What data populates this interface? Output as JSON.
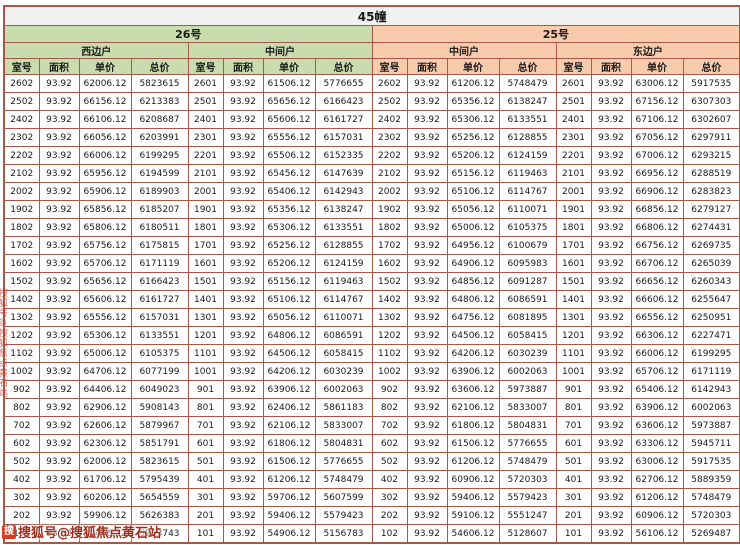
{
  "title": "45幢",
  "groups": [
    {
      "label": "26号",
      "units": [
        "西边户",
        "中间户"
      ]
    },
    {
      "label": "25号",
      "units": [
        "中间户",
        "东边户"
      ]
    }
  ],
  "column_headers": [
    "室号",
    "面积",
    "单价",
    "总价"
  ],
  "rows": [
    [
      "2602",
      "93.92",
      "62006.12",
      "5823615",
      "2601",
      "93.92",
      "61506.12",
      "5776655",
      "2602",
      "93.92",
      "61206.12",
      "5748479",
      "2601",
      "93.92",
      "63006.12",
      "5917535"
    ],
    [
      "2502",
      "93.92",
      "66156.12",
      "6213383",
      "2501",
      "93.92",
      "65656.12",
      "6166423",
      "2502",
      "93.92",
      "65356.12",
      "6138247",
      "2501",
      "93.92",
      "67156.12",
      "6307303"
    ],
    [
      "2402",
      "93.92",
      "66106.12",
      "6208687",
      "2401",
      "93.92",
      "65606.12",
      "6161727",
      "2402",
      "93.92",
      "65306.12",
      "6133551",
      "2401",
      "93.92",
      "67106.12",
      "6302607"
    ],
    [
      "2302",
      "93.92",
      "66056.12",
      "6203991",
      "2301",
      "93.92",
      "65556.12",
      "6157031",
      "2302",
      "93.92",
      "65256.12",
      "6128855",
      "2301",
      "93.92",
      "67056.12",
      "6297911"
    ],
    [
      "2202",
      "93.92",
      "66006.12",
      "6199295",
      "2201",
      "93.92",
      "65506.12",
      "6152335",
      "2202",
      "93.92",
      "65206.12",
      "6124159",
      "2201",
      "93.92",
      "67006.12",
      "6293215"
    ],
    [
      "2102",
      "93.92",
      "65956.12",
      "6194599",
      "2101",
      "93.92",
      "65456.12",
      "6147639",
      "2102",
      "93.92",
      "65156.12",
      "6119463",
      "2101",
      "93.92",
      "66956.12",
      "6288519"
    ],
    [
      "2002",
      "93.92",
      "65906.12",
      "6189903",
      "2001",
      "93.92",
      "65406.12",
      "6142943",
      "2002",
      "93.92",
      "65106.12",
      "6114767",
      "2001",
      "93.92",
      "66906.12",
      "6283823"
    ],
    [
      "1902",
      "93.92",
      "65856.12",
      "6185207",
      "1901",
      "93.92",
      "65356.12",
      "6138247",
      "1902",
      "93.92",
      "65056.12",
      "6110071",
      "1901",
      "93.92",
      "66856.12",
      "6279127"
    ],
    [
      "1802",
      "93.92",
      "65806.12",
      "6180511",
      "1801",
      "93.92",
      "65306.12",
      "6133551",
      "1802",
      "93.92",
      "65006.12",
      "6105375",
      "1801",
      "93.92",
      "66806.12",
      "6274431"
    ],
    [
      "1702",
      "93.92",
      "65756.12",
      "6175815",
      "1701",
      "93.92",
      "65256.12",
      "6128855",
      "1702",
      "93.92",
      "64956.12",
      "6100679",
      "1701",
      "93.92",
      "66756.12",
      "6269735"
    ],
    [
      "1602",
      "93.92",
      "65706.12",
      "6171119",
      "1601",
      "93.92",
      "65206.12",
      "6124159",
      "1602",
      "93.92",
      "64906.12",
      "6095983",
      "1601",
      "93.92",
      "66706.12",
      "6265039"
    ],
    [
      "1502",
      "93.92",
      "65656.12",
      "6166423",
      "1501",
      "93.92",
      "65156.12",
      "6119463",
      "1502",
      "93.92",
      "64856.12",
      "6091287",
      "1501",
      "93.92",
      "66656.12",
      "6260343"
    ],
    [
      "1402",
      "93.92",
      "65606.12",
      "6161727",
      "1401",
      "93.92",
      "65106.12",
      "6114767",
      "1402",
      "93.92",
      "64806.12",
      "6086591",
      "1401",
      "93.92",
      "66606.12",
      "6255647"
    ],
    [
      "1302",
      "93.92",
      "65556.12",
      "6157031",
      "1301",
      "93.92",
      "65056.12",
      "6110071",
      "1302",
      "93.92",
      "64756.12",
      "6081895",
      "1301",
      "93.92",
      "66556.12",
      "6250951"
    ],
    [
      "1202",
      "93.92",
      "65306.12",
      "6133551",
      "1201",
      "93.92",
      "64806.12",
      "6086591",
      "1202",
      "93.92",
      "64506.12",
      "6058415",
      "1201",
      "93.92",
      "66306.12",
      "6227471"
    ],
    [
      "1102",
      "93.92",
      "65006.12",
      "6105375",
      "1101",
      "93.92",
      "64506.12",
      "6058415",
      "1102",
      "93.92",
      "64206.12",
      "6030239",
      "1101",
      "93.92",
      "66006.12",
      "6199295"
    ],
    [
      "1002",
      "93.92",
      "64706.12",
      "6077199",
      "1001",
      "93.92",
      "64206.12",
      "6030239",
      "1002",
      "93.92",
      "63906.12",
      "6002063",
      "1001",
      "93.92",
      "65706.12",
      "6171119"
    ],
    [
      "902",
      "93.92",
      "64406.12",
      "6049023",
      "901",
      "93.92",
      "63906.12",
      "6002063",
      "902",
      "93.92",
      "63606.12",
      "5973887",
      "901",
      "93.92",
      "65406.12",
      "6142943"
    ],
    [
      "802",
      "93.92",
      "62906.12",
      "5908143",
      "801",
      "93.92",
      "62406.12",
      "5861183",
      "802",
      "93.92",
      "62106.12",
      "5833007",
      "801",
      "93.92",
      "63906.12",
      "6002063"
    ],
    [
      "702",
      "93.92",
      "62606.12",
      "5879967",
      "701",
      "93.92",
      "62106.12",
      "5833007",
      "702",
      "93.92",
      "61806.12",
      "5804831",
      "701",
      "93.92",
      "63606.12",
      "5973887"
    ],
    [
      "602",
      "93.92",
      "62306.12",
      "5851791",
      "601",
      "93.92",
      "61806.12",
      "5804831",
      "602",
      "93.92",
      "61506.12",
      "5776655",
      "601",
      "93.92",
      "63306.12",
      "5945711"
    ],
    [
      "502",
      "93.92",
      "62006.12",
      "5823615",
      "501",
      "93.92",
      "61506.12",
      "5776655",
      "502",
      "93.92",
      "61206.12",
      "5748479",
      "501",
      "93.92",
      "63006.12",
      "5917535"
    ],
    [
      "402",
      "93.92",
      "61706.12",
      "5795439",
      "401",
      "93.92",
      "61206.12",
      "5748479",
      "402",
      "93.92",
      "60906.12",
      "5720303",
      "401",
      "93.92",
      "62706.12",
      "5889359"
    ],
    [
      "302",
      "93.92",
      "60206.12",
      "5654559",
      "301",
      "93.92",
      "59706.12",
      "5607599",
      "302",
      "93.92",
      "59406.12",
      "5579423",
      "301",
      "93.92",
      "61206.12",
      "5748479"
    ],
    [
      "202",
      "93.92",
      "59906.12",
      "5626383",
      "201",
      "93.92",
      "59406.12",
      "5579423",
      "202",
      "93.92",
      "59106.12",
      "5551247",
      "201",
      "93.92",
      "60906.12",
      "5720303"
    ],
    [
      "102",
      "93.92",
      "55406.12",
      "5203743",
      "101",
      "93.92",
      "54906.12",
      "5156783",
      "102",
      "93.92",
      "54606.12",
      "5128607",
      "101",
      "93.92",
      "56106.12",
      "5269487"
    ]
  ],
  "watermark": {
    "logo_char": "搜",
    "text": "搜狐号@搜狐焦点黄石站"
  },
  "colors": {
    "border": "#a9574b",
    "header_green": "#c8dcad",
    "header_peach": "#f8cbad",
    "title_bg": "#f1f1f1",
    "watermark_red": "#9c2f1f"
  }
}
